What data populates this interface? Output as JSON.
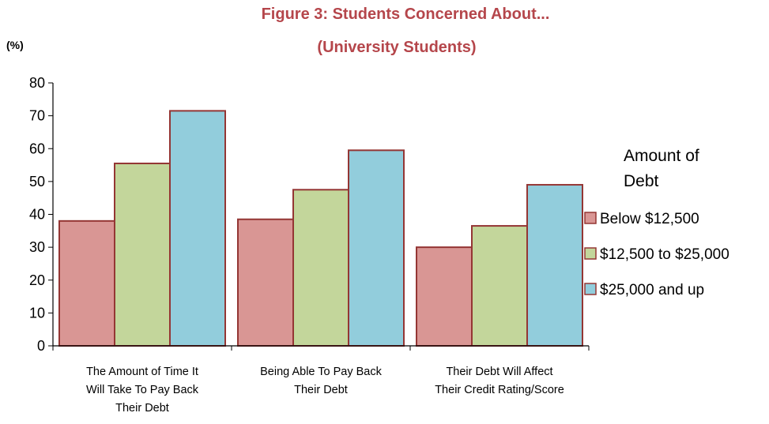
{
  "chart_data": {
    "type": "bar",
    "title_lines": [
      "Figure 3: Students Concerned About...",
      "(University Students)"
    ],
    "title_color": "#b5464b",
    "ylabel": "(%)",
    "ylim": [
      0,
      80
    ],
    "yticks": [
      0,
      10,
      20,
      30,
      40,
      50,
      60,
      70,
      80
    ],
    "categories": [
      [
        "The Amount of Time It",
        "Will Take To Pay Back",
        "Their Debt"
      ],
      [
        "Being Able To Pay Back",
        "Their Debt"
      ],
      [
        "Their Debt Will Affect",
        "Their Credit Rating/Score"
      ]
    ],
    "legend_title": [
      "Amount of",
      "Debt"
    ],
    "legend_position": "right",
    "series": [
      {
        "name": "Below $12,500",
        "color": "#d99694",
        "values": [
          38,
          38.5,
          30
        ]
      },
      {
        "name": "$12,500 to $25,000",
        "color": "#c3d69b",
        "values": [
          55.5,
          47.5,
          36.5
        ]
      },
      {
        "name": "$25,000 and up",
        "color": "#92cddc",
        "values": [
          71.5,
          59.5,
          49
        ]
      }
    ],
    "bar_border_color": "#943634"
  }
}
